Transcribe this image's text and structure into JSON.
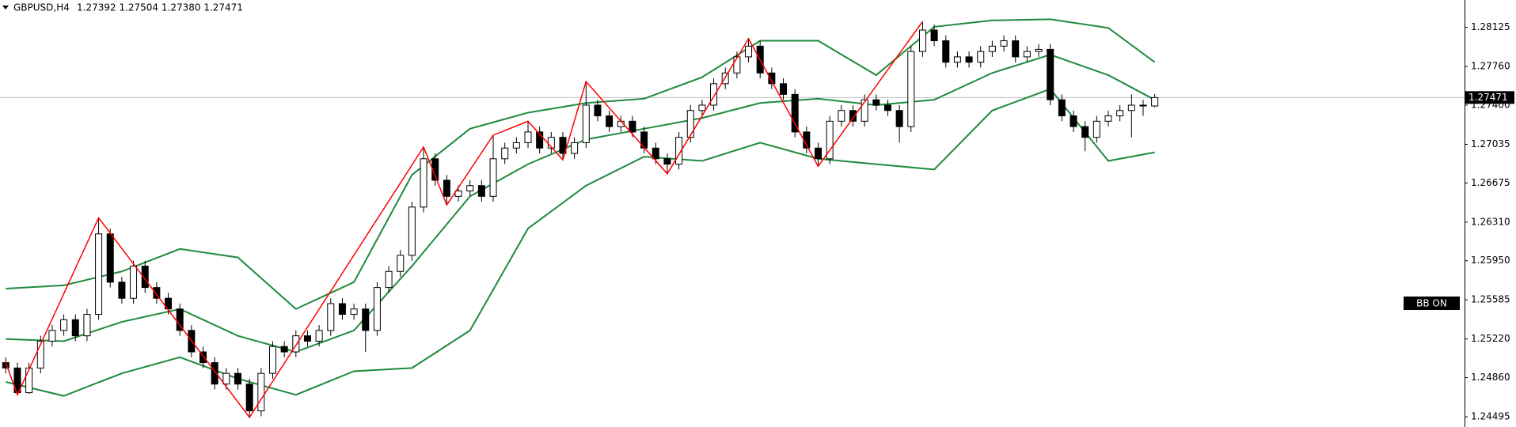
{
  "chart_data": {
    "type": "candlestick",
    "symbol": "GBPUSD,H4",
    "header_ohlc": "1.27392 1.27504 1.27380 1.27471",
    "button": "BB ON",
    "last_price": 1.27471,
    "ylim": [
      1.244,
      1.2838
    ],
    "yticks": [
      1.28125,
      {
        "value": 1.2776,
        "label": "1.27760"
      },
      {
        "value": 1.274,
        "label": "1.27400"
      },
      1.27035,
      1.26675,
      {
        "value": 1.2631,
        "label": "1.26310"
      },
      {
        "value": 1.2595,
        "label": "1.25950"
      },
      1.25585,
      {
        "value": 1.2522,
        "label": "1.25220"
      },
      {
        "value": 1.2486,
        "label": "1.24860"
      },
      1.24495
    ],
    "up_color": "#ffffff",
    "down_color": "#000000",
    "open": [
      1.25,
      1.2495,
      1.2472,
      1.2495,
      1.252,
      1.253,
      1.254,
      1.2525,
      1.2545,
      1.262,
      1.2575,
      1.256,
      1.259,
      1.257,
      1.256,
      1.255,
      1.253,
      1.251,
      1.25,
      1.248,
      1.249,
      1.248,
      1.2455,
      1.249,
      1.2515,
      1.251,
      1.2525,
      1.252,
      1.253,
      1.2555,
      1.2545,
      1.255,
      1.253,
      1.257,
      1.2585,
      1.26,
      1.2645,
      1.269,
      1.267,
      1.2655,
      1.266,
      1.2665,
      1.2655,
      1.269,
      1.27,
      1.2705,
      1.2715,
      1.27,
      1.271,
      1.2695,
      1.2705,
      1.274,
      1.273,
      1.272,
      1.2725,
      1.2715,
      1.27,
      1.269,
      1.2685,
      1.271,
      1.2735,
      1.274,
      1.276,
      1.277,
      1.2785,
      1.2795,
      1.277,
      1.276,
      1.275,
      1.2715,
      1.27,
      1.269,
      1.2725,
      1.2735,
      1.2725,
      1.2745,
      1.274,
      1.2735,
      1.272,
      1.279,
      1.281,
      1.28,
      1.278,
      1.2785,
      1.278,
      1.279,
      1.2795,
      1.28,
      1.2785,
      1.279,
      1.2792,
      1.2745,
      1.273,
      1.272,
      1.271,
      1.2725,
      1.273,
      1.2735,
      1.274,
      1.27392
    ],
    "high": [
      1.2505,
      1.25,
      1.25,
      1.2525,
      1.2535,
      1.2545,
      1.2545,
      1.255,
      1.2635,
      1.2625,
      1.258,
      1.2595,
      1.2595,
      1.2575,
      1.2565,
      1.2555,
      1.2535,
      1.2515,
      1.2505,
      1.2495,
      1.2495,
      1.2485,
      1.2495,
      1.252,
      1.252,
      1.253,
      1.253,
      1.2535,
      1.256,
      1.256,
      1.2555,
      1.2555,
      1.2575,
      1.259,
      1.2605,
      1.265,
      1.2701,
      1.2695,
      1.2675,
      1.2665,
      1.267,
      1.267,
      1.2712,
      1.2705,
      1.271,
      1.2725,
      1.272,
      1.2715,
      1.2715,
      1.271,
      1.2762,
      1.2745,
      1.2735,
      1.273,
      1.273,
      1.272,
      1.2705,
      1.2695,
      1.2715,
      1.274,
      1.2745,
      1.2765,
      1.2775,
      1.279,
      1.2802,
      1.28,
      1.2775,
      1.2765,
      1.2755,
      1.272,
      1.2705,
      1.273,
      1.274,
      1.274,
      1.275,
      1.275,
      1.2745,
      1.274,
      1.2795,
      1.2818,
      1.2815,
      1.2805,
      1.279,
      1.279,
      1.2795,
      1.28,
      1.2805,
      1.2805,
      1.2795,
      1.2797,
      1.2797,
      1.275,
      1.2735,
      1.2725,
      1.273,
      1.2735,
      1.274,
      1.275,
      1.2745,
      1.27504
    ],
    "low": [
      1.249,
      1.247,
      1.2471,
      1.249,
      1.2515,
      1.2525,
      1.252,
      1.252,
      1.254,
      1.257,
      1.2555,
      1.2555,
      1.2565,
      1.2555,
      1.2545,
      1.2525,
      1.2505,
      1.2495,
      1.2475,
      1.2475,
      1.2475,
      1.2449,
      1.245,
      1.2485,
      1.2505,
      1.2505,
      1.2515,
      1.2515,
      1.2525,
      1.254,
      1.254,
      1.251,
      1.2525,
      1.2565,
      1.258,
      1.2595,
      1.264,
      1.2665,
      1.2647,
      1.265,
      1.2655,
      1.265,
      1.265,
      1.2685,
      1.2695,
      1.27,
      1.2695,
      1.2695,
      1.2689,
      1.269,
      1.27,
      1.2725,
      1.2715,
      1.2715,
      1.271,
      1.2695,
      1.2685,
      1.2676,
      1.268,
      1.2705,
      1.273,
      1.2735,
      1.2755,
      1.2765,
      1.278,
      1.2765,
      1.2755,
      1.2745,
      1.271,
      1.2695,
      1.2683,
      1.2685,
      1.272,
      1.272,
      1.272,
      1.2735,
      1.273,
      1.2705,
      1.2715,
      1.2785,
      1.2795,
      1.2775,
      1.2775,
      1.2775,
      1.2775,
      1.2785,
      1.279,
      1.278,
      1.278,
      1.2785,
      1.274,
      1.2725,
      1.2715,
      1.2697,
      1.2705,
      1.272,
      1.2725,
      1.271,
      1.273,
      1.2738
    ],
    "close": [
      1.2495,
      1.2472,
      1.2495,
      1.252,
      1.253,
      1.254,
      1.2525,
      1.2545,
      1.262,
      1.2575,
      1.256,
      1.259,
      1.257,
      1.256,
      1.255,
      1.253,
      1.251,
      1.25,
      1.248,
      1.249,
      1.248,
      1.2455,
      1.249,
      1.2515,
      1.251,
      1.2525,
      1.252,
      1.253,
      1.2555,
      1.2545,
      1.255,
      1.253,
      1.257,
      1.2585,
      1.26,
      1.2645,
      1.269,
      1.267,
      1.2655,
      1.266,
      1.2665,
      1.2655,
      1.269,
      1.27,
      1.2705,
      1.2715,
      1.27,
      1.271,
      1.2695,
      1.2705,
      1.274,
      1.273,
      1.272,
      1.2725,
      1.2715,
      1.27,
      1.269,
      1.2685,
      1.271,
      1.2735,
      1.274,
      1.276,
      1.277,
      1.2785,
      1.2795,
      1.277,
      1.276,
      1.275,
      1.2715,
      1.27,
      1.269,
      1.2725,
      1.2735,
      1.2725,
      1.2745,
      1.274,
      1.2735,
      1.272,
      1.279,
      1.281,
      1.28,
      1.278,
      1.2785,
      1.278,
      1.279,
      1.2795,
      1.28,
      1.2785,
      1.279,
      1.2792,
      1.2745,
      1.273,
      1.272,
      1.271,
      1.2725,
      1.273,
      1.2735,
      1.274,
      1.27392,
      1.27471
    ],
    "bands": {
      "color": "#1f8a3e",
      "x": [
        0,
        5,
        10,
        15,
        20,
        25,
        30,
        35,
        40,
        45,
        50,
        55,
        60,
        65,
        70,
        75,
        80,
        85,
        90,
        95,
        99
      ],
      "upper": [
        1.2569,
        1.2572,
        1.2585,
        1.2606,
        1.2598,
        1.255,
        1.2575,
        1.2675,
        1.2718,
        1.2733,
        1.2742,
        1.2746,
        1.2766,
        1.28,
        1.28,
        1.2768,
        1.2813,
        1.2819,
        1.282,
        1.2812,
        1.278
      ],
      "middle": [
        1.2522,
        1.252,
        1.2538,
        1.255,
        1.2525,
        1.251,
        1.253,
        1.259,
        1.2655,
        1.2685,
        1.2708,
        1.2718,
        1.2728,
        1.2742,
        1.2746,
        1.274,
        1.2745,
        1.277,
        1.2787,
        1.2768,
        1.2745
      ],
      "lower": [
        1.2482,
        1.2469,
        1.249,
        1.2505,
        1.2485,
        1.247,
        1.2492,
        1.2495,
        1.253,
        1.2625,
        1.2665,
        1.2692,
        1.2688,
        1.2705,
        1.269,
        1.2685,
        1.268,
        1.2735,
        1.2755,
        1.2688,
        1.2696
      ]
    },
    "zigzag": {
      "color": "#ff0000",
      "x": [
        0,
        1,
        8,
        21,
        36,
        38,
        42,
        45,
        48,
        50,
        57,
        64,
        70,
        79
      ],
      "values": [
        1.25,
        1.247,
        1.2635,
        1.2449,
        1.2701,
        1.2647,
        1.2712,
        1.2725,
        1.2689,
        1.2762,
        1.2676,
        1.2802,
        1.2683,
        1.2818
      ]
    }
  }
}
